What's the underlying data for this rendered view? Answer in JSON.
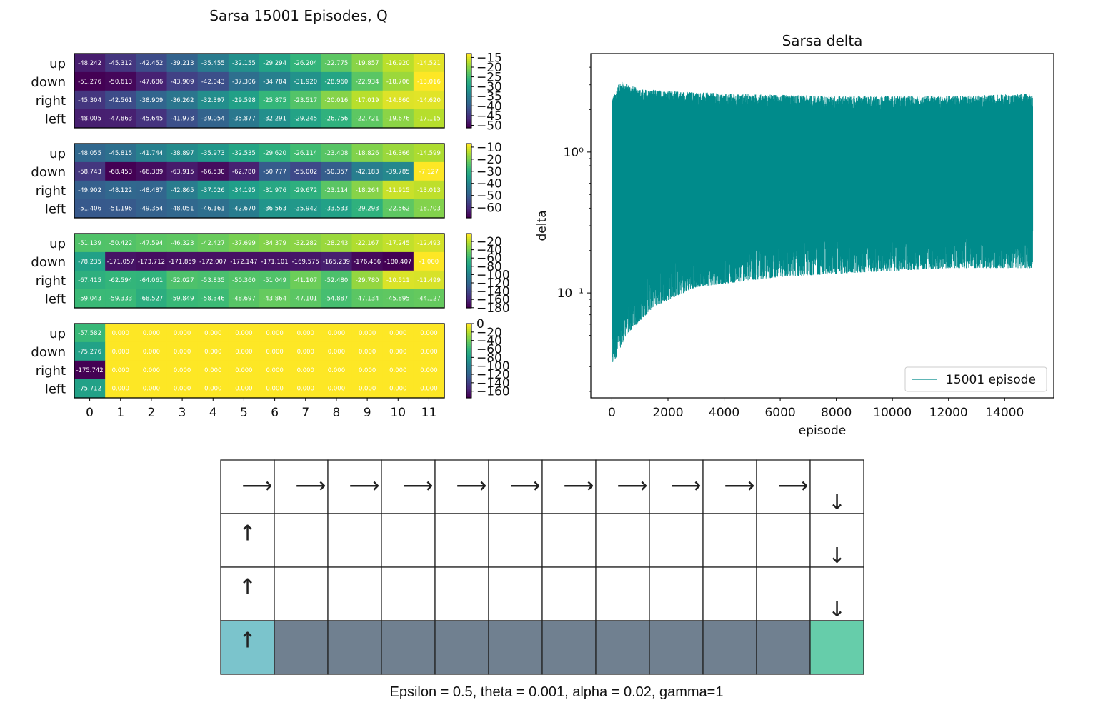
{
  "caption": "Epsilon = 0.5, theta = 0.001, alpha = 0.02, gamma=1",
  "chart_data": [
    {
      "type": "heatmap",
      "title": "Sarsa 15001 Episodes, Q",
      "actions": [
        "up",
        "down",
        "right",
        "left"
      ],
      "columns": [
        "0",
        "1",
        "2",
        "3",
        "4",
        "5",
        "6",
        "7",
        "8",
        "9",
        "10",
        "11"
      ],
      "colormap": "viridis",
      "panels": [
        {
          "row": 0,
          "vmin": -51.3,
          "vmax": -13.0,
          "colorbar_ticks": [
            "−15",
            "−20",
            "−25",
            "−30",
            "−35",
            "−40",
            "−45",
            "−50"
          ],
          "colorbar_values": [
            -15,
            -20,
            -25,
            -30,
            -35,
            -40,
            -45,
            -50
          ],
          "values": [
            [
              "-48.242",
              "-45.312",
              "-42.452",
              "-39.213",
              "-35.455",
              "-32.155",
              "-29.294",
              "-26.204",
              "-22.775",
              "-19.857",
              "-16.920",
              "-14.521"
            ],
            [
              "-51.276",
              "-50.613",
              "-47.686",
              "-43.909",
              "-42.043",
              "-37.306",
              "-34.784",
              "-31.920",
              "-28.960",
              "-22.934",
              "-18.706",
              "-13.016"
            ],
            [
              "-45.304",
              "-42.561",
              "-38.909",
              "-36.262",
              "-32.397",
              "-29.598",
              "-25.875",
              "-23.517",
              "-20.016",
              "-17.019",
              "-14.860",
              "-14.620"
            ],
            [
              "-48.005",
              "-47.863",
              "-45.645",
              "-41.978",
              "-39.054",
              "-35.877",
              "-32.291",
              "-29.245",
              "-26.756",
              "-22.721",
              "-19.676",
              "-17.115"
            ]
          ]
        },
        {
          "row": 1,
          "vmin": -68.5,
          "vmax": -7.1,
          "colorbar_ticks": [
            "−10",
            "−20",
            "−30",
            "−40",
            "−50",
            "−60"
          ],
          "colorbar_values": [
            -10,
            -20,
            -30,
            -40,
            -50,
            -60
          ],
          "values": [
            [
              "-48.055",
              "-45.815",
              "-41.744",
              "-38.897",
              "-35.973",
              "-32.535",
              "-29.620",
              "-26.114",
              "-23.408",
              "-18.826",
              "-16.366",
              "-14.599"
            ],
            [
              "-58.743",
              "-68.453",
              "-66.389",
              "-63.915",
              "-66.530",
              "-62.780",
              "-50.777",
              "-55.002",
              "-50.357",
              "-42.183",
              "-39.785",
              "-7.127"
            ],
            [
              "-49.902",
              "-48.122",
              "-48.487",
              "-42.865",
              "-37.026",
              "-34.195",
              "-31.976",
              "-29.672",
              "-23.114",
              "-18.264",
              "-11.915",
              "-13.013"
            ],
            [
              "-51.406",
              "-51.196",
              "-49.354",
              "-48.051",
              "-46.161",
              "-42.670",
              "-36.563",
              "-35.942",
              "-33.533",
              "-29.293",
              "-22.562",
              "-18.703"
            ]
          ]
        },
        {
          "row": 2,
          "vmin": -180.4,
          "vmax": -1.0,
          "colorbar_ticks": [
            "−20",
            "−40",
            "−60",
            "−80",
            "−100",
            "−120",
            "−140",
            "−160",
            "−180"
          ],
          "colorbar_values": [
            -20,
            -40,
            -60,
            -80,
            -100,
            -120,
            -140,
            -160,
            -180
          ],
          "values": [
            [
              "-51.139",
              "-50.422",
              "-47.594",
              "-46.323",
              "-42.427",
              "-37.699",
              "-34.379",
              "-32.282",
              "-28.243",
              "-22.167",
              "-17.245",
              "-12.493"
            ],
            [
              "-78.235",
              "-171.057",
              "-173.712",
              "-171.859",
              "-172.007",
              "-172.147",
              "-171.101",
              "-169.575",
              "-165.239",
              "-176.486",
              "-180.407",
              "-1.000"
            ],
            [
              "-67.415",
              "-62.594",
              "-64.061",
              "-52.027",
              "-53.835",
              "-50.360",
              "-51.049",
              "-41.107",
              "-52.480",
              "-29.780",
              "-10.511",
              "-11.499"
            ],
            [
              "-59.043",
              "-59.333",
              "-68.527",
              "-59.849",
              "-58.346",
              "-48.697",
              "-43.864",
              "-47.101",
              "-54.887",
              "-47.134",
              "-45.895",
              "-44.127"
            ]
          ]
        },
        {
          "row": 3,
          "vmin": -175.742,
          "vmax": 0,
          "colorbar_ticks": [
            "0",
            "−20",
            "−40",
            "−60",
            "−80",
            "−100",
            "−120",
            "−140",
            "−160"
          ],
          "colorbar_values": [
            0,
            -20,
            -40,
            -60,
            -80,
            -100,
            -120,
            -140,
            -160
          ],
          "values": [
            [
              "-57.582",
              "0.000",
              "0.000",
              "0.000",
              "0.000",
              "0.000",
              "0.000",
              "0.000",
              "0.000",
              "0.000",
              "0.000",
              "0.000"
            ],
            [
              "-75.276",
              "0.000",
              "0.000",
              "0.000",
              "0.000",
              "0.000",
              "0.000",
              "0.000",
              "0.000",
              "0.000",
              "0.000",
              "0.000"
            ],
            [
              "-175.742",
              "0.000",
              "0.000",
              "0.000",
              "0.000",
              "0.000",
              "0.000",
              "0.000",
              "0.000",
              "0.000",
              "0.000",
              "0.000"
            ],
            [
              "-75.712",
              "0.000",
              "0.000",
              "0.000",
              "0.000",
              "0.000",
              "0.000",
              "0.000",
              "0.000",
              "0.000",
              "0.000",
              "0.000"
            ]
          ]
        }
      ]
    },
    {
      "type": "line",
      "title": "Sarsa delta",
      "xlabel": "episode",
      "ylabel": "delta",
      "yscale": "log",
      "xlim": [
        -750,
        15750
      ],
      "ylim": [
        0.018,
        5.0
      ],
      "x_ticks": [
        "0",
        "2000",
        "4000",
        "6000",
        "8000",
        "10000",
        "12000",
        "14000"
      ],
      "x_tick_values": [
        0,
        2000,
        4000,
        6000,
        8000,
        10000,
        12000,
        14000
      ],
      "y_ticks": [
        "10⁰",
        "10⁻¹"
      ],
      "y_tick_values": [
        1,
        0.1
      ],
      "legend": "bottom-right",
      "color": "#008b8b",
      "series": [
        {
          "name": "15001 episode",
          "episodes": 15001,
          "upper_envelope": [
            [
              0,
              2.4
            ],
            [
              300,
              3.2
            ],
            [
              1000,
              2.8
            ],
            [
              4000,
              2.6
            ],
            [
              8000,
              2.5
            ],
            [
              12000,
              2.5
            ],
            [
              15000,
              2.6
            ]
          ],
          "lower_envelope": [
            [
              0,
              0.03
            ],
            [
              500,
              0.05
            ],
            [
              1500,
              0.08
            ],
            [
              3000,
              0.11
            ],
            [
              6000,
              0.13
            ],
            [
              9000,
              0.14
            ],
            [
              12000,
              0.15
            ],
            [
              15000,
              0.15
            ]
          ]
        }
      ]
    },
    {
      "type": "table",
      "title": "",
      "rows": 4,
      "cols": 12,
      "cells": [
        [
          "right",
          "right",
          "right",
          "right",
          "right",
          "right",
          "right",
          "right",
          "right",
          "right",
          "right",
          "down"
        ],
        [
          "up",
          "",
          "",
          "",
          "",
          "",
          "",
          "",
          "",
          "",
          "",
          "down"
        ],
        [
          "up",
          "",
          "",
          "",
          "",
          "",
          "",
          "",
          "",
          "",
          "",
          "down"
        ],
        [
          "up",
          "",
          "",
          "",
          "",
          "",
          "",
          "",
          "",
          "",
          "",
          ""
        ]
      ],
      "start_color": "#7bc4cc",
      "cliff_color": "#708090",
      "goal_color": "#66cdaa",
      "cliff_cells": [
        [
          3,
          1
        ],
        [
          3,
          2
        ],
        [
          3,
          3
        ],
        [
          3,
          4
        ],
        [
          3,
          5
        ],
        [
          3,
          6
        ],
        [
          3,
          7
        ],
        [
          3,
          8
        ],
        [
          3,
          9
        ],
        [
          3,
          10
        ]
      ],
      "start_cell": [
        3,
        0
      ],
      "goal_cell": [
        3,
        11
      ]
    }
  ]
}
